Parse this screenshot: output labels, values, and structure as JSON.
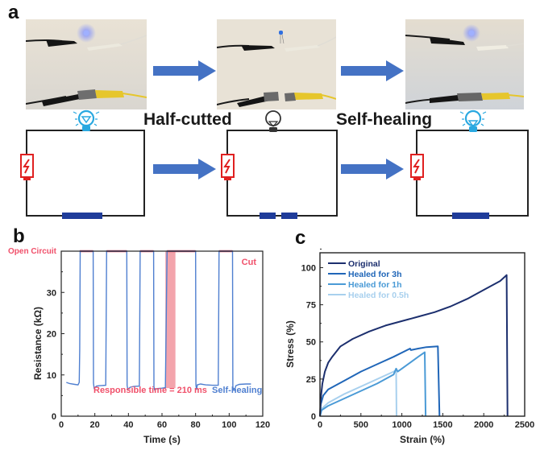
{
  "panel_a": {
    "label": "a",
    "captions": [
      "Half-cutted",
      "Self-healing"
    ],
    "states": [
      {
        "name": "original",
        "led_lit": true,
        "wire_cut": false
      },
      {
        "name": "half-cutted",
        "led_lit": false,
        "wire_cut": true
      },
      {
        "name": "self-healed",
        "led_lit": true,
        "wire_cut": false
      }
    ],
    "colors": {
      "arrow": "#4472c4",
      "bulb_on": "#29a8e0",
      "bulb_off": "#333333",
      "battery": "#e02020",
      "conductor": "#1f3c9a"
    }
  },
  "chart_data": [
    {
      "panel": "b",
      "type": "line",
      "title": "",
      "xlabel": "Time (s)",
      "ylabel": "Resistance (kΩ)",
      "xlim": [
        0,
        120
      ],
      "ylim": [
        0,
        40
      ],
      "xticks": [
        0,
        20,
        40,
        60,
        80,
        100,
        120
      ],
      "yticks": [
        0,
        10,
        20,
        30
      ],
      "grid": false,
      "annotations": {
        "open_circuit": "Open Circuit",
        "cut": "Cut",
        "responsible_time": "Responsible time = 210 ms",
        "self_healing": "Self-healing"
      },
      "open_circuit_intervals": [
        [
          11,
          19
        ],
        [
          27,
          39
        ],
        [
          47,
          55
        ],
        [
          63,
          80
        ],
        [
          94,
          102
        ]
      ],
      "highlight_interval": [
        62,
        68
      ],
      "series": [
        {
          "name": "Resistance",
          "color": "#4f7fd0",
          "points": [
            [
              3,
              8.2
            ],
            [
              5,
              7.9
            ],
            [
              8,
              7.7
            ],
            [
              10,
              7.6
            ],
            [
              10.7,
              8.2
            ],
            [
              11,
              16
            ],
            [
              11.3,
              40
            ],
            [
              19,
              40
            ],
            [
              19.2,
              8
            ],
            [
              19.6,
              6.8
            ],
            [
              21,
              7.3
            ],
            [
              23,
              7.4
            ],
            [
              26.5,
              7.5
            ],
            [
              27,
              40
            ],
            [
              39,
              40
            ],
            [
              39.2,
              7.5
            ],
            [
              39.6,
              6.5
            ],
            [
              41,
              7.0
            ],
            [
              43,
              7.2
            ],
            [
              46.5,
              7.3
            ],
            [
              47,
              40
            ],
            [
              55,
              40
            ],
            [
              55.2,
              7.2
            ],
            [
              55.6,
              6.4
            ],
            [
              57,
              6.7
            ],
            [
              60,
              6.8
            ],
            [
              62,
              6.9
            ],
            [
              63,
              40
            ],
            [
              80,
              40
            ],
            [
              80.2,
              7.5
            ],
            [
              80.6,
              6.4
            ],
            [
              81,
              7.6
            ],
            [
              83,
              7.8
            ],
            [
              86,
              7.6
            ],
            [
              90,
              7.5
            ],
            [
              93.5,
              7.5
            ],
            [
              94,
              40
            ],
            [
              102,
              40
            ],
            [
              102.2,
              7.2
            ],
            [
              102.6,
              6.3
            ],
            [
              103.2,
              6.3
            ],
            [
              104,
              7.4
            ],
            [
              106,
              7.7
            ],
            [
              110,
              7.8
            ],
            [
              113,
              7.8
            ]
          ]
        }
      ]
    },
    {
      "panel": "c",
      "type": "line",
      "title": "",
      "xlabel": "Strain (%)",
      "ylabel": "Stress (%)",
      "xlim": [
        0,
        2500
      ],
      "ylim": [
        0,
        110
      ],
      "xticks": [
        0,
        500,
        1000,
        1500,
        2000,
        2500
      ],
      "yticks": [
        0,
        25,
        50,
        75,
        100
      ],
      "grid": false,
      "legend_position": "top-left",
      "series": [
        {
          "name": "Original",
          "color": "#1c2f6e",
          "points": [
            [
              0,
              0
            ],
            [
              10,
              12
            ],
            [
              30,
              22
            ],
            [
              60,
              30
            ],
            [
              100,
              36
            ],
            [
              150,
              40
            ],
            [
              250,
              47
            ],
            [
              400,
              52
            ],
            [
              600,
              57
            ],
            [
              800,
              61
            ],
            [
              1000,
              64
            ],
            [
              1200,
              67
            ],
            [
              1400,
              70
            ],
            [
              1600,
              74
            ],
            [
              1800,
              79
            ],
            [
              2000,
              85
            ],
            [
              2200,
              91
            ],
            [
              2280,
              95
            ],
            [
              2290,
              0
            ]
          ]
        },
        {
          "name": "Healed for 3h",
          "color": "#2066b8",
          "points": [
            [
              0,
              0
            ],
            [
              10,
              8
            ],
            [
              40,
              14
            ],
            [
              100,
              18
            ],
            [
              300,
              24
            ],
            [
              500,
              30
            ],
            [
              700,
              35
            ],
            [
              900,
              40
            ],
            [
              1100,
              45.5
            ],
            [
              1110,
              44.5
            ],
            [
              1200,
              45.5
            ],
            [
              1300,
              46.5
            ],
            [
              1440,
              47
            ],
            [
              1460,
              0
            ]
          ]
        },
        {
          "name": "Healed for 1h",
          "color": "#4a9ad6",
          "points": [
            [
              0,
              0
            ],
            [
              20,
              4
            ],
            [
              100,
              7
            ],
            [
              300,
              12
            ],
            [
              500,
              17
            ],
            [
              700,
              22
            ],
            [
              900,
              28
            ],
            [
              930,
              32
            ],
            [
              950,
              30
            ],
            [
              1000,
              32
            ],
            [
              1100,
              36
            ],
            [
              1200,
              40
            ],
            [
              1280,
              43
            ],
            [
              1290,
              0
            ]
          ]
        },
        {
          "name": "Healed for 0.5h",
          "color": "#a8d0ee",
          "points": [
            [
              0,
              0
            ],
            [
              20,
              5
            ],
            [
              100,
              9
            ],
            [
              300,
              15
            ],
            [
              500,
              20
            ],
            [
              700,
              25
            ],
            [
              900,
              30
            ],
            [
              930,
              31
            ],
            [
              935,
              0
            ]
          ]
        }
      ]
    }
  ],
  "panel_labels": {
    "b": "b",
    "c": "c"
  }
}
